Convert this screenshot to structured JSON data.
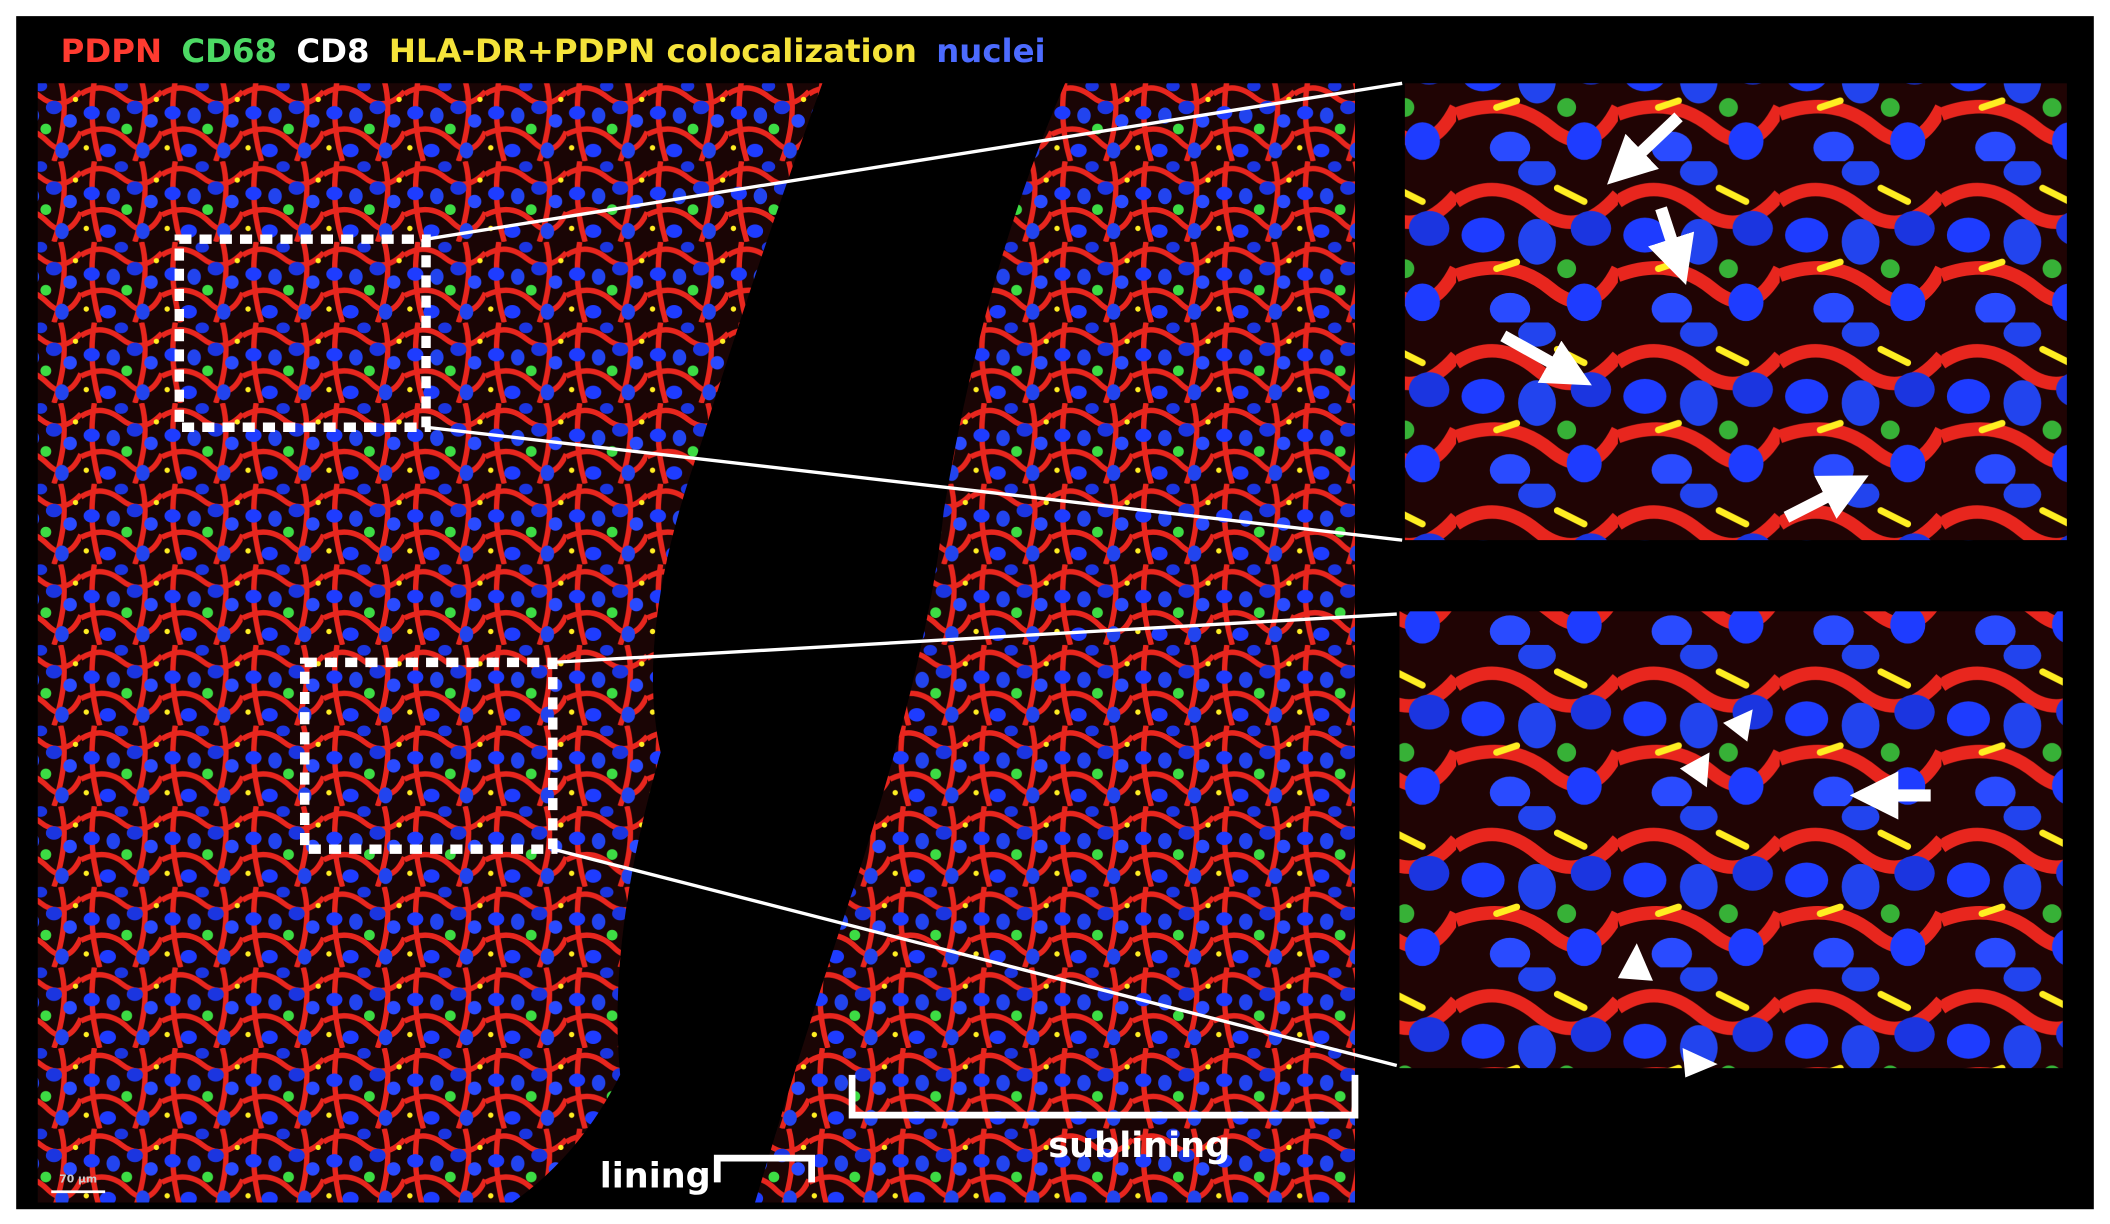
{
  "legend": [
    "PDPN",
    "CD68",
    "CD8",
    "HLA-DR+PDPN colocalization",
    "nuclei"
  ],
  "labels": {
    "lining": "lining",
    "sublining": "sublining",
    "scale_bar": "70 µm"
  }
}
